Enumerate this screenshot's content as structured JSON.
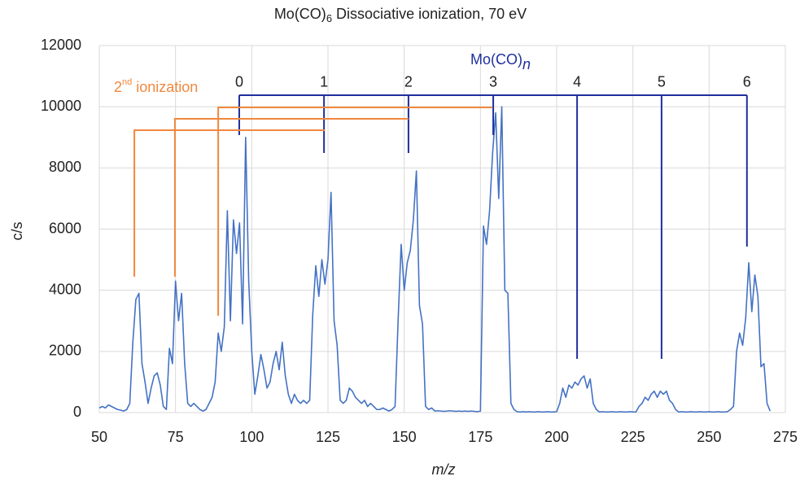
{
  "chart_data": {
    "type": "line",
    "title": [
      "Mo(CO)",
      "6",
      " Dissociative ionization, 70 eV"
    ],
    "xlabel": "m/z",
    "ylabel": "c/s",
    "xlim": [
      50,
      275
    ],
    "ylim": [
      0,
      12000
    ],
    "xticks": [
      50,
      75,
      100,
      125,
      150,
      175,
      200,
      225,
      250,
      275
    ],
    "yticks": [
      0,
      2000,
      4000,
      6000,
      8000,
      10000,
      12000
    ],
    "grid": true,
    "x": [
      50,
      51,
      52,
      53,
      54,
      55,
      56,
      57,
      58,
      59,
      60,
      61,
      62,
      63,
      64,
      65,
      66,
      67,
      68,
      69,
      70,
      71,
      72,
      73,
      74,
      75,
      76,
      77,
      78,
      79,
      80,
      81,
      82,
      83,
      84,
      85,
      86,
      87,
      88,
      89,
      90,
      91,
      92,
      93,
      94,
      95,
      96,
      97,
      98,
      99,
      100,
      101,
      102,
      103,
      104,
      105,
      106,
      107,
      108,
      109,
      110,
      111,
      112,
      113,
      114,
      115,
      116,
      117,
      118,
      119,
      120,
      121,
      122,
      123,
      124,
      125,
      126,
      127,
      128,
      129,
      130,
      131,
      132,
      133,
      134,
      135,
      136,
      137,
      138,
      139,
      140,
      141,
      142,
      143,
      144,
      145,
      146,
      147,
      148,
      149,
      150,
      151,
      152,
      153,
      154,
      155,
      156,
      157,
      158,
      159,
      160,
      161,
      162,
      163,
      164,
      165,
      166,
      167,
      168,
      169,
      170,
      171,
      172,
      173,
      174,
      175,
      176,
      177,
      178,
      179,
      180,
      181,
      182,
      183,
      184,
      185,
      186,
      187,
      188,
      189,
      190,
      191,
      192,
      193,
      194,
      195,
      196,
      197,
      198,
      199,
      200,
      201,
      202,
      203,
      204,
      205,
      206,
      207,
      208,
      209,
      210,
      211,
      212,
      213,
      214,
      215,
      216,
      217,
      218,
      219,
      220,
      221,
      222,
      223,
      224,
      225,
      226,
      227,
      228,
      229,
      230,
      231,
      232,
      233,
      234,
      235,
      236,
      237,
      238,
      239,
      240,
      241,
      242,
      243,
      244,
      245,
      246,
      247,
      248,
      249,
      250,
      251,
      252,
      253,
      254,
      255,
      256,
      257,
      258,
      259,
      260,
      261,
      262,
      263,
      264,
      265,
      266,
      267,
      268,
      269,
      270
    ],
    "series": [
      {
        "name": "Mo(CO)6",
        "color": "#4472c4",
        "values": [
          150,
          200,
          150,
          250,
          200,
          150,
          100,
          80,
          50,
          100,
          300,
          2300,
          3700,
          3900,
          1600,
          1000,
          300,
          800,
          1200,
          1300,
          900,
          200,
          100,
          2100,
          1600,
          4300,
          3000,
          3900,
          1600,
          300,
          200,
          300,
          200,
          100,
          50,
          100,
          300,
          500,
          1000,
          2600,
          2000,
          2800,
          6600,
          3000,
          6300,
          5200,
          6200,
          2900,
          9000,
          4300,
          2000,
          600,
          1200,
          1900,
          1400,
          800,
          1000,
          1600,
          2000,
          1400,
          2300,
          1200,
          600,
          300,
          600,
          400,
          300,
          400,
          300,
          400,
          3200,
          4800,
          3800,
          5000,
          4200,
          5000,
          7200,
          3000,
          2200,
          400,
          300,
          400,
          800,
          700,
          500,
          400,
          300,
          400,
          200,
          300,
          200,
          100,
          100,
          150,
          100,
          50,
          100,
          200,
          3000,
          5500,
          4000,
          4900,
          5300,
          6300,
          7900,
          3500,
          2900,
          200,
          100,
          150,
          50,
          60,
          50,
          40,
          50,
          60,
          50,
          40,
          50,
          40,
          50,
          40,
          50,
          40,
          30,
          50,
          6100,
          5500,
          6600,
          8500,
          9800,
          7000,
          10000,
          4000,
          3900,
          300,
          100,
          30,
          20,
          30,
          20,
          30,
          20,
          20,
          30,
          20,
          20,
          30,
          20,
          20,
          30,
          300,
          800,
          500,
          900,
          800,
          1000,
          900,
          1100,
          1200,
          800,
          1100,
          300,
          100,
          20,
          30,
          20,
          20,
          30,
          20,
          20,
          30,
          20,
          20,
          30,
          20,
          20,
          200,
          300,
          500,
          400,
          600,
          700,
          500,
          700,
          600,
          700,
          400,
          300,
          100,
          20,
          30,
          20,
          20,
          30,
          20,
          20,
          30,
          20,
          20,
          30,
          20,
          20,
          30,
          20,
          20,
          30,
          100,
          200,
          2000,
          2600,
          2200,
          3100,
          4900,
          3300,
          4500,
          3800,
          1500,
          1600,
          300,
          50
        ]
      }
    ],
    "annotations": {
      "neutral_loss": {
        "label": [
          "Mo(CO)",
          "n"
        ],
        "color": "#1f2f9e",
        "bracket_y": 10378,
        "markers": [
          {
            "label": "0",
            "x": 95.9,
            "y": 9074
          },
          {
            "label": "1",
            "x": 123.7,
            "y": 8489
          },
          {
            "label": "2",
            "x": 151.4,
            "y": 8489
          },
          {
            "label": "3",
            "x": 179.2,
            "y": 9074
          },
          {
            "label": "4",
            "x": 206.7,
            "y": 1756
          },
          {
            "label": "5",
            "x": 234.4,
            "y": 1756
          },
          {
            "label": "6",
            "x": 262.4,
            "y": 5428
          }
        ]
      },
      "second_ionization": {
        "label": [
          "2",
          "nd",
          " ionization"
        ],
        "color": "#f0883e",
        "lines": [
          {
            "x": 61.5,
            "y_bottom": 4444,
            "y_top": 9234,
            "x_end": 124
          },
          {
            "x": 74.8,
            "y_bottom": 4444,
            "y_top": 9606,
            "x_end": 151.4
          },
          {
            "x": 89,
            "y_bottom": 3167,
            "y_top": 9978,
            "x_end": 179
          }
        ]
      }
    }
  }
}
